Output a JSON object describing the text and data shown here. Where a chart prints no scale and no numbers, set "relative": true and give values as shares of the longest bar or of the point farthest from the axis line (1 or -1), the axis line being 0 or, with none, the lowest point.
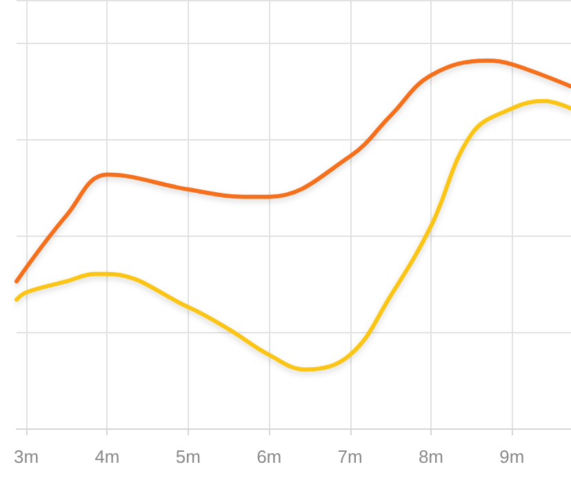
{
  "chart_data": {
    "type": "line",
    "relative": true,
    "grid": true,
    "marker": "none",
    "line_style": "solid",
    "xlim": [
      2.88,
      9.73
    ],
    "xticks": [
      {
        "value": 3,
        "label": "3m"
      },
      {
        "value": 4,
        "label": "4m"
      },
      {
        "value": 5,
        "label": "5m"
      },
      {
        "value": 6,
        "label": "6m"
      },
      {
        "value": 7,
        "label": "7m"
      },
      {
        "value": 8,
        "label": "8m"
      },
      {
        "value": 9,
        "label": "9m"
      }
    ],
    "series": [
      {
        "color": "#f4701f",
        "x": [
          2.88,
          3.5,
          4,
          5,
          5.7,
          6,
          7,
          7.5,
          8,
          8.7,
          9,
          9.73
        ],
        "values": [
          0.4,
          0.58,
          0.69,
          0.65,
          0.63,
          0.63,
          0.74,
          0.85,
          0.96,
          1,
          0.99,
          0.93
        ]
      },
      {
        "color": "#fac515",
        "x": [
          2.88,
          3,
          3.5,
          3.85,
          4,
          5,
          5.5,
          6,
          6.45,
          7,
          7.5,
          8,
          8.5,
          9,
          9.4,
          9.73
        ],
        "values": [
          0.35,
          0.37,
          0.4,
          0.42,
          0.42,
          0.33,
          0.27,
          0.2,
          0.16,
          0.2,
          0.36,
          0.55,
          0.8,
          0.87,
          0.89,
          0.87
        ]
      }
    ]
  }
}
